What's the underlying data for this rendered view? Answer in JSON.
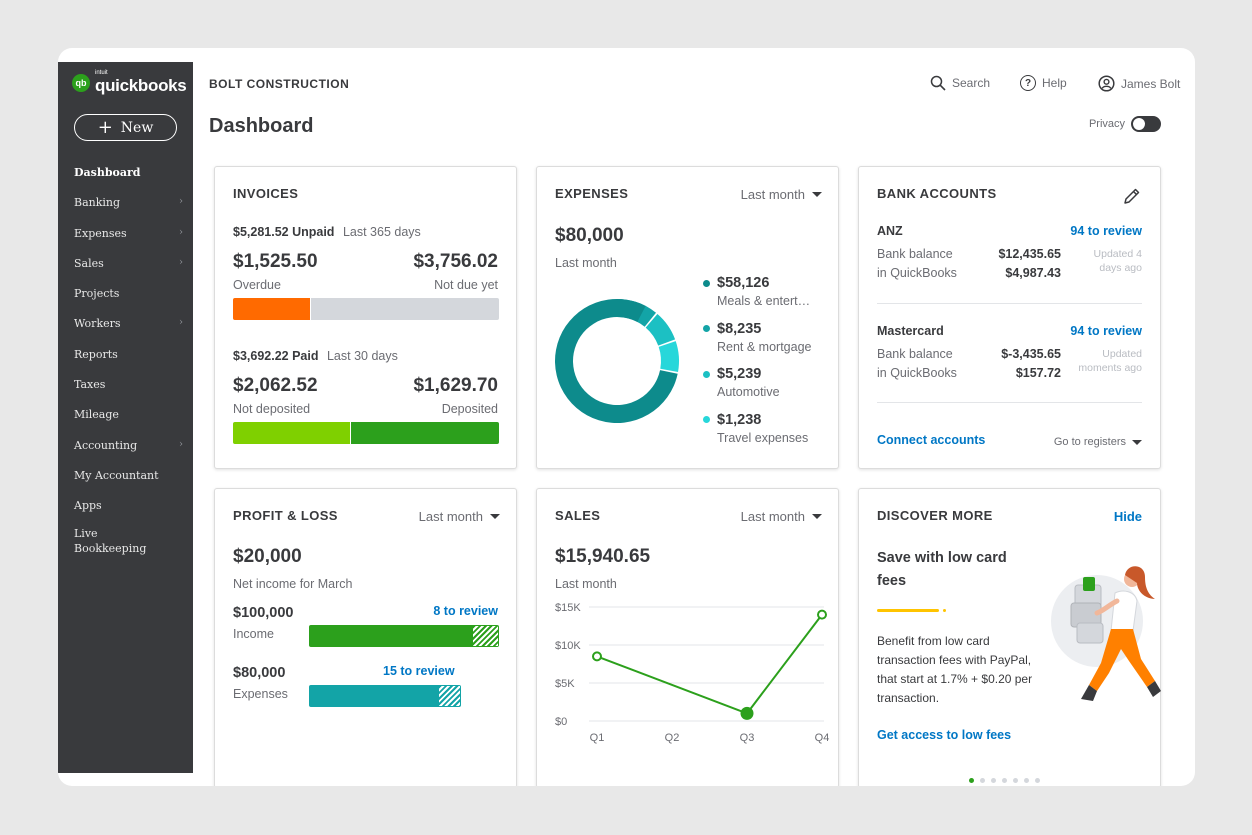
{
  "sidebar": {
    "logo_prefix": "intuit",
    "logo": "quickbooks",
    "logo_badge": "qb",
    "new_button": "New",
    "items": [
      {
        "label": "Dashboard",
        "active": true,
        "chevron": false
      },
      {
        "label": "Banking",
        "chevron": true
      },
      {
        "label": "Expenses",
        "chevron": true
      },
      {
        "label": "Sales",
        "chevron": true
      },
      {
        "label": "Projects",
        "chevron": false
      },
      {
        "label": "Workers",
        "chevron": true
      },
      {
        "label": "Reports",
        "chevron": false
      },
      {
        "label": "Taxes",
        "chevron": false
      },
      {
        "label": "Mileage",
        "chevron": false
      },
      {
        "label": "Accounting",
        "chevron": true
      },
      {
        "label": "My Accountant",
        "chevron": false
      },
      {
        "label": "Apps",
        "chevron": false
      },
      {
        "label": "Live Bookkeeping",
        "chevron": false
      }
    ]
  },
  "header": {
    "company": "BOLT CONSTRUCTION",
    "title": "Dashboard",
    "search": "Search",
    "help": "Help",
    "help_glyph": "?",
    "user": "James Bolt",
    "privacy": "Privacy"
  },
  "invoices": {
    "title": "INVOICES",
    "unpaid_amount": "$5,281.52 Unpaid",
    "unpaid_period": "Last 365 days",
    "overdue_amount": "$1,525.50",
    "overdue_label": "Overdue",
    "not_due_amount": "$3,756.02",
    "not_due_label": "Not due yet",
    "unpaid_bar_fraction": 0.29,
    "paid_amount": "$3,692.22 Paid",
    "paid_period": "Last 30 days",
    "not_deposited_amount": "$2,062.52",
    "not_deposited_label": "Not deposited",
    "deposited_amount": "$1,629.70",
    "deposited_label": "Deposited",
    "paid_bar_fraction": 0.44
  },
  "expenses": {
    "title": "EXPENSES",
    "period": "Last month",
    "total": "$80,000",
    "total_label": "Last month",
    "categories": [
      {
        "amount": "$58,126",
        "label": "Meals & entert…",
        "value": 58126,
        "color": "#0d8b8c"
      },
      {
        "amount": "$8,235",
        "label": "Rent & mortgage",
        "value": 8235,
        "color": "#13a4a7"
      },
      {
        "amount": "$5,239",
        "label": "Automotive",
        "value": 5239,
        "color": "#1cc0c3"
      },
      {
        "amount": "$1,238",
        "label": "Travel expenses",
        "value": 1238,
        "color": "#27d7da"
      }
    ]
  },
  "bank_accounts": {
    "title": "BANK ACCOUNTS",
    "accounts": [
      {
        "name": "ANZ",
        "review": "94 to review",
        "bank_label": "Bank balance",
        "bank_value": "$12,435.65",
        "qb_label": "in QuickBooks",
        "qb_value": "$4,987.43",
        "updated": "Updated 4 days ago"
      },
      {
        "name": "Mastercard",
        "review": "94 to review",
        "bank_label": "Bank balance",
        "bank_value": "$-3,435.65",
        "qb_label": "in QuickBooks",
        "qb_value": "$157.72",
        "updated": "Updated moments ago"
      }
    ],
    "connect": "Connect accounts",
    "registers": "Go to registers"
  },
  "profit_loss": {
    "title": "PROFIT & LOSS",
    "period": "Last month",
    "net_income": "$20,000",
    "net_label": "Net income for March",
    "income_amount": "$100,000",
    "income_label": "Income",
    "income_review": "8 to review",
    "income_reviewed_fraction": 0.86,
    "expenses_amount": "$80,000",
    "expenses_label": "Expenses",
    "expenses_review": "15 to review",
    "expenses_reviewed_fraction": 0.85,
    "expenses_scale_fraction": 0.8
  },
  "sales": {
    "title": "SALES",
    "period": "Last month",
    "total": "$15,940.65",
    "total_label": "Last month"
  },
  "chart_data": {
    "type": "line",
    "categories": [
      "Q1",
      "Q2",
      "Q3",
      "Q4"
    ],
    "series": [
      {
        "values": [
          8500,
          null,
          1000,
          14000
        ]
      }
    ],
    "ylim": [
      0,
      15000
    ],
    "yticks": [
      "$0",
      "$5K",
      "$10K",
      "$15K"
    ],
    "ytick_values": [
      0,
      5000,
      10000,
      15000
    ],
    "grid": true,
    "color": "#2ca01c"
  },
  "discover": {
    "title": "DISCOVER MORE",
    "hide": "Hide",
    "headline": "Save with low card fees",
    "body": "Benefit from low card transaction fees with PayPal, that start at 1.7% + $0.20 per transaction.",
    "cta": "Get access to low fees",
    "page_count": 7,
    "current_page": 1
  }
}
